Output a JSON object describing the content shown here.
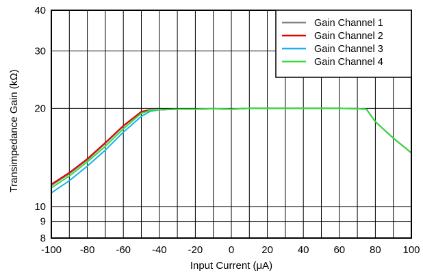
{
  "chart_data": {
    "type": "line",
    "xlabel": "Input Current (μA)",
    "ylabel": "Transimpedance Gain (kΩ)",
    "xlim": [
      -100,
      100
    ],
    "ylim": [
      8,
      40
    ],
    "yscale": "log",
    "x_ticks": [
      -100,
      -80,
      -60,
      -40,
      -20,
      0,
      20,
      40,
      60,
      80,
      100
    ],
    "x_tick_labels": [
      "-100",
      "-80",
      "-60",
      "-40",
      "-20",
      "0",
      "20",
      "40",
      "60",
      "80",
      "100"
    ],
    "y_ticks": [
      8,
      9,
      10,
      20,
      30,
      40
    ],
    "y_tick_labels": [
      "8",
      "9",
      "10",
      "20",
      "30",
      "40"
    ],
    "grid": true,
    "legend_position": "top-right",
    "series": [
      {
        "name": "Gain Channel 1",
        "color": "#808080",
        "x": [
          -100,
          -90,
          -80,
          -70,
          -60,
          -50,
          -45,
          -40,
          -30,
          -20,
          -10,
          0,
          10,
          20,
          40,
          60,
          70,
          75,
          80,
          90,
          100
        ],
        "y": [
          11.6,
          12.6,
          13.9,
          15.6,
          17.6,
          19.5,
          19.8,
          19.8,
          19.9,
          19.9,
          19.95,
          19.9,
          20.0,
          20.0,
          20.0,
          20.0,
          19.95,
          19.9,
          18.2,
          16.2,
          14.6
        ]
      },
      {
        "name": "Gain Channel 2",
        "color": "#e00000",
        "x": [
          -100,
          -90,
          -80,
          -70,
          -60,
          -50,
          -45,
          -40,
          -30,
          -20,
          -10,
          0,
          10,
          20,
          40,
          60,
          70,
          75,
          80,
          90,
          100
        ],
        "y": [
          11.7,
          12.7,
          14.0,
          15.7,
          17.7,
          19.55,
          19.8,
          19.8,
          19.9,
          19.9,
          19.95,
          19.9,
          20.0,
          20.0,
          20.0,
          20.0,
          19.95,
          19.9,
          18.2,
          16.2,
          14.6
        ]
      },
      {
        "name": "Gain Channel 3",
        "color": "#1ab0e8",
        "x": [
          -100,
          -90,
          -80,
          -70,
          -60,
          -50,
          -45,
          -40,
          -30,
          -20,
          -10,
          0,
          10,
          20,
          40,
          60,
          70,
          75,
          80,
          90,
          100
        ],
        "y": [
          11.0,
          12.0,
          13.3,
          14.9,
          16.9,
          18.9,
          19.6,
          19.8,
          19.9,
          19.9,
          19.95,
          19.9,
          20.0,
          20.0,
          20.0,
          20.0,
          19.95,
          19.9,
          18.2,
          16.2,
          14.6
        ]
      },
      {
        "name": "Gain Channel 4",
        "color": "#33dd33",
        "x": [
          -100,
          -90,
          -80,
          -70,
          -60,
          -50,
          -45,
          -40,
          -30,
          -20,
          -10,
          0,
          10,
          20,
          40,
          60,
          70,
          75,
          80,
          90,
          100
        ],
        "y": [
          11.4,
          12.4,
          13.7,
          15.3,
          17.3,
          19.3,
          19.75,
          19.8,
          19.9,
          19.9,
          19.95,
          19.9,
          20.0,
          20.0,
          20.0,
          20.0,
          19.95,
          19.9,
          18.2,
          16.2,
          14.6
        ]
      }
    ]
  }
}
